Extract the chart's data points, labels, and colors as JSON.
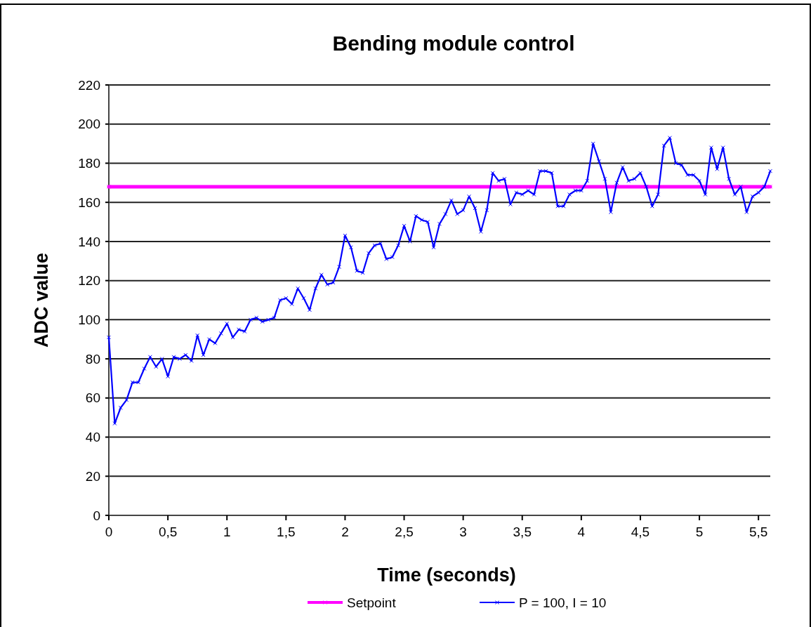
{
  "chart_data": {
    "type": "line",
    "title": "Bending module control",
    "xlabel": "Time (seconds)",
    "ylabel": "ADC value",
    "x": [
      0,
      0.05,
      0.1,
      0.15,
      0.2,
      0.25,
      0.3,
      0.35,
      0.4,
      0.45,
      0.5,
      0.55,
      0.6,
      0.65,
      0.7,
      0.75,
      0.8,
      0.85,
      0.9,
      0.95,
      1,
      1.05,
      1.1,
      1.15,
      1.2,
      1.25,
      1.3,
      1.35,
      1.4,
      1.45,
      1.5,
      1.55,
      1.6,
      1.65,
      1.7,
      1.75,
      1.8,
      1.85,
      1.9,
      1.95,
      2,
      2.05,
      2.1,
      2.15,
      2.2,
      2.25,
      2.3,
      2.35,
      2.4,
      2.45,
      2.5,
      2.55,
      2.6,
      2.65,
      2.7,
      2.75,
      2.8,
      2.85,
      2.9,
      2.95,
      3,
      3.05,
      3.1,
      3.15,
      3.2,
      3.25,
      3.3,
      3.35,
      3.4,
      3.45,
      3.5,
      3.55,
      3.6,
      3.65,
      3.7,
      3.75,
      3.8,
      3.85,
      3.9,
      3.95,
      4,
      4.05,
      4.1,
      4.15,
      4.2,
      4.25,
      4.3,
      4.35,
      4.4,
      4.45,
      4.5,
      4.55,
      4.6,
      4.65,
      4.7,
      4.75,
      4.8,
      4.85,
      4.9,
      4.95,
      5,
      5.05,
      5.1,
      5.15,
      5.2,
      5.25,
      5.3,
      5.35,
      5.4,
      5.45,
      5.5,
      5.55,
      5.6
    ],
    "series": [
      {
        "name": "Setpoint",
        "color": "#ff00ff",
        "x": [
          0,
          5.6
        ],
        "values": [
          168,
          168
        ]
      },
      {
        "name": "P = 100, I = 10",
        "color": "#0000ff",
        "values": [
          91,
          47,
          55,
          59,
          68,
          68,
          75,
          81,
          76,
          80,
          71,
          81,
          80,
          82,
          79,
          92,
          82,
          90,
          88,
          93,
          98,
          91,
          95,
          94,
          100,
          101,
          99,
          100,
          101,
          110,
          111,
          108,
          116,
          111,
          105,
          116,
          123,
          118,
          119,
          127,
          143,
          137,
          125,
          124,
          134,
          138,
          139,
          131,
          132,
          138,
          148,
          140,
          153,
          151,
          150,
          137,
          149,
          154,
          161,
          154,
          156,
          163,
          157,
          145,
          156,
          175,
          171,
          172,
          159,
          165,
          164,
          166,
          164,
          176,
          176,
          175,
          158,
          158,
          164,
          166,
          166,
          171,
          190,
          181,
          172,
          155,
          170,
          178,
          171,
          172,
          175,
          168,
          158,
          164,
          189,
          193,
          180,
          179,
          174,
          174,
          171,
          164,
          188,
          177,
          188,
          172,
          164,
          168,
          155,
          163,
          165,
          168,
          176
        ]
      }
    ],
    "xlim": [
      0,
      5.6
    ],
    "ylim": [
      0,
      220
    ],
    "xticks": [
      0,
      {
        "value": 0.5,
        "label": "0,5"
      },
      1,
      {
        "value": 1.5,
        "label": "1,5"
      },
      2,
      {
        "value": 2.5,
        "label": "2,5"
      },
      3,
      {
        "value": 3.5,
        "label": "3,5"
      },
      4,
      {
        "value": 4.5,
        "label": "4,5"
      },
      5,
      {
        "value": 5.5,
        "label": "5,5"
      }
    ],
    "yticks": [
      0,
      20,
      40,
      60,
      80,
      100,
      120,
      140,
      160,
      180,
      200,
      220
    ],
    "grid": "y",
    "legend": "bottom",
    "marker": "cross",
    "line_style": "solid"
  }
}
